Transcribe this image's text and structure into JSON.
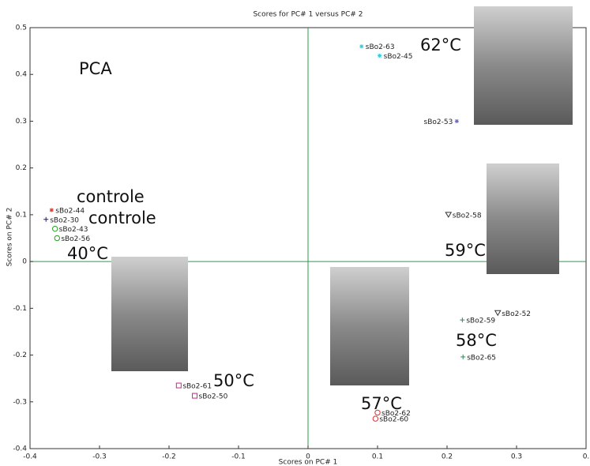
{
  "chart_data": {
    "type": "scatter",
    "title": "Scores for PC# 1 versus PC# 2",
    "x_label": "Scores on PC# 1",
    "y_label": "Scores on PC# 2",
    "x": [
      0.077,
      0.103,
      0.214,
      -0.369,
      -0.377,
      -0.364,
      -0.361,
      0.202,
      0.273,
      0.222,
      0.223,
      -0.186,
      -0.163,
      0.1,
      0.097
    ],
    "values": [
      0.46,
      0.44,
      0.3,
      0.11,
      0.09,
      0.07,
      0.05,
      0.1,
      -0.11,
      -0.125,
      -0.204,
      -0.265,
      -0.287,
      -0.323,
      -0.336
    ],
    "point_labels": [
      "sBo2-63",
      "sBo2-45",
      "sBo2-53",
      "sBo2-44",
      "sBo2-30",
      "sBo2-43",
      "sBo2-56",
      "sBo2-58",
      "sBo2-52",
      "sBo2-59",
      "sBo2-65",
      "sBo2-61",
      "sBo2-50",
      "sBo2-62",
      "sBo2-60"
    ],
    "colors": [
      "#3cc8e0",
      "#3cc8e0",
      "#6a6ad0",
      "#e04030",
      "#202060",
      "#20a020",
      "#20a020",
      "#333333",
      "#333333",
      "#2a8a50",
      "#2a8a50",
      "#d02090",
      "#d02090",
      "#e03030",
      "#e03030"
    ],
    "markers": [
      "star",
      "star",
      "star",
      "star",
      "plus",
      "circle",
      "circle",
      "triangle",
      "triangle",
      "plus",
      "plus",
      "square",
      "square",
      "circle",
      "circle"
    ],
    "annotations": [
      "PCA",
      "controle",
      "controle",
      "40°C",
      "50°C",
      "57°C",
      "58°C",
      "59°C",
      "62°C"
    ],
    "xlim": [
      -0.4,
      0.4
    ],
    "ylim": [
      -0.4,
      0.5
    ],
    "xticks": [
      -0.4,
      -0.3,
      -0.2,
      -0.1,
      0,
      0.1,
      0.2,
      0.3,
      {
        "value": 0.4,
        "label": "0."
      }
    ],
    "yticks": [
      -0.4,
      -0.3,
      -0.2,
      -0.1,
      0,
      0.1,
      0.2,
      0.3,
      0.4,
      0.5
    ],
    "zero_lines": true,
    "zero_line_color": "#2a9d4a"
  }
}
